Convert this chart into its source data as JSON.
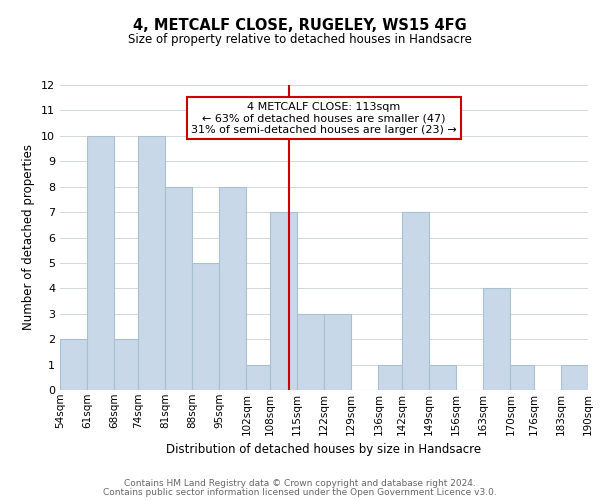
{
  "title": "4, METCALF CLOSE, RUGELEY, WS15 4FG",
  "subtitle": "Size of property relative to detached houses in Handsacre",
  "xlabel": "Distribution of detached houses by size in Handsacre",
  "ylabel": "Number of detached properties",
  "bar_color": "#c8d8e8",
  "bar_edge_color": "#a8c0d0",
  "grid_color": "#d0d8e0",
  "bins": [
    "54sqm",
    "61sqm",
    "68sqm",
    "74sqm",
    "81sqm",
    "88sqm",
    "95sqm",
    "102sqm",
    "108sqm",
    "115sqm",
    "122sqm",
    "129sqm",
    "136sqm",
    "142sqm",
    "149sqm",
    "156sqm",
    "163sqm",
    "170sqm",
    "176sqm",
    "183sqm",
    "190sqm"
  ],
  "counts": [
    2,
    10,
    2,
    10,
    8,
    5,
    8,
    1,
    7,
    3,
    3,
    0,
    1,
    7,
    1,
    0,
    4,
    1,
    0,
    1
  ],
  "ylim": [
    0,
    12
  ],
  "yticks": [
    0,
    1,
    2,
    3,
    4,
    5,
    6,
    7,
    8,
    9,
    10,
    11,
    12
  ],
  "left_edges": [
    54,
    61,
    68,
    74,
    81,
    88,
    95,
    102,
    108,
    115,
    122,
    129,
    136,
    142,
    149,
    156,
    163,
    170,
    176,
    183
  ],
  "all_edges": [
    54,
    61,
    68,
    74,
    81,
    88,
    95,
    102,
    108,
    115,
    122,
    129,
    136,
    142,
    149,
    156,
    163,
    170,
    176,
    183,
    190
  ],
  "widths": [
    7,
    7,
    6,
    7,
    7,
    7,
    7,
    6,
    7,
    7,
    7,
    7,
    6,
    7,
    7,
    7,
    7,
    6,
    7,
    7
  ],
  "marker_x": 113,
  "marker_label": "4 METCALF CLOSE: 113sqm",
  "annotation_line1": "← 63% of detached houses are smaller (47)",
  "annotation_line2": "31% of semi-detached houses are larger (23) →",
  "annotation_box_color": "#ffffff",
  "annotation_box_edge": "#cc0000",
  "marker_line_color": "#cc0000",
  "footer1": "Contains HM Land Registry data © Crown copyright and database right 2024.",
  "footer2": "Contains public sector information licensed under the Open Government Licence v3.0.",
  "background_color": "#ffffff",
  "xlim_left": 54,
  "xlim_right": 190
}
